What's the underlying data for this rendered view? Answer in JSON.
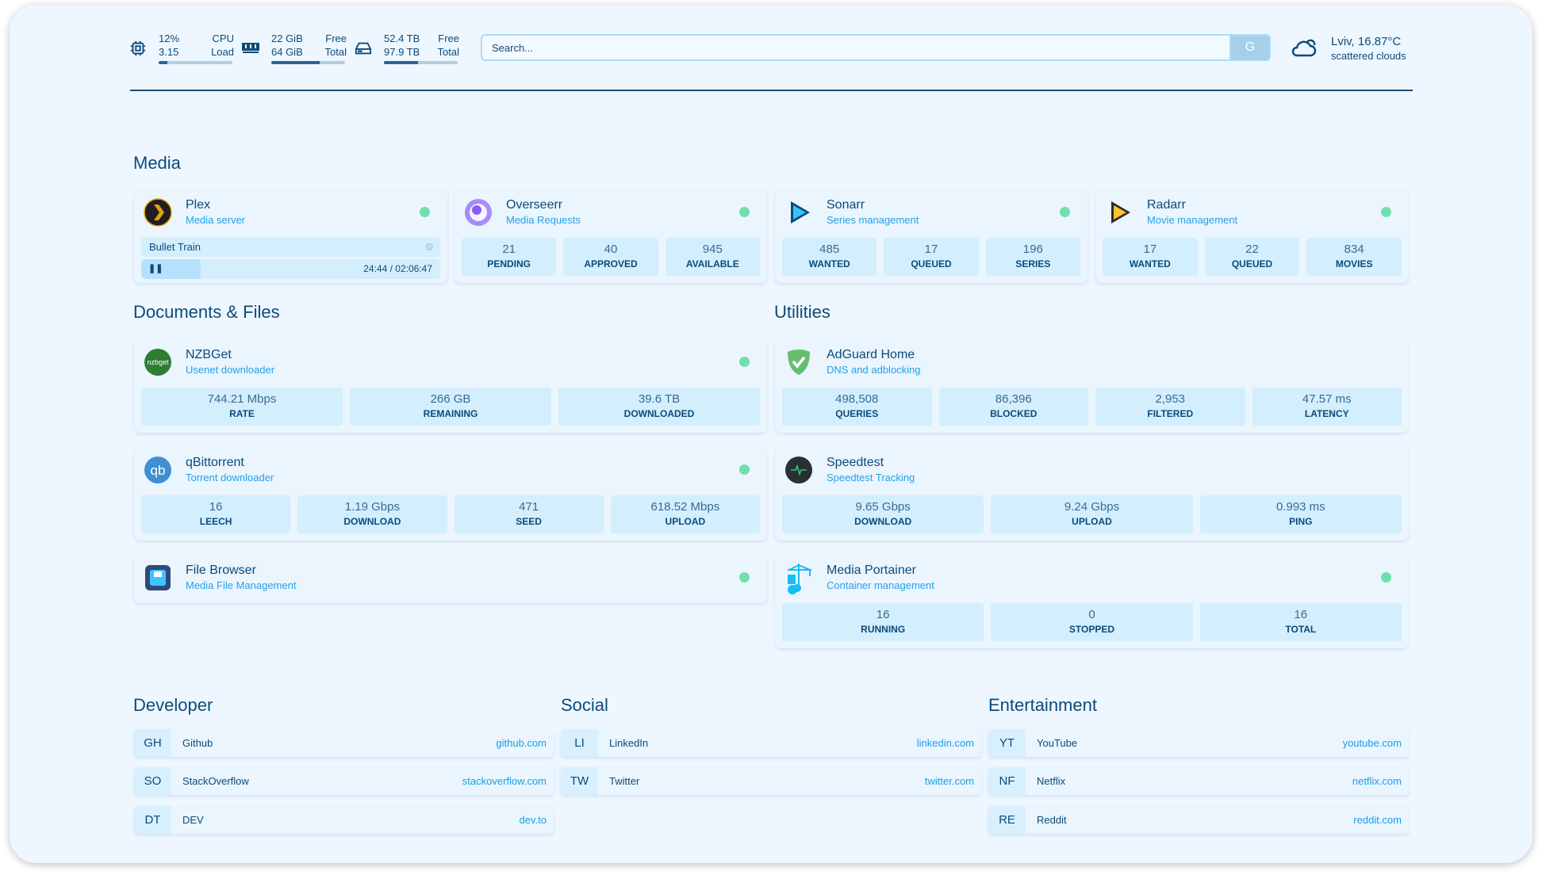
{
  "header": {
    "cpu": {
      "value1": "12%",
      "label1": "CPU",
      "value2": "3.15",
      "label2": "Load",
      "usage": 0.12
    },
    "memory": {
      "value1": "22 GiB",
      "label1": "Free",
      "value2": "64 GiB",
      "label2": "Total",
      "usage": 0.66
    },
    "disk": {
      "value1": "52.4 TB",
      "label1": "Free",
      "value2": "97.9 TB",
      "label2": "Total",
      "usage": 0.46
    },
    "search": {
      "placeholder": "Search...",
      "button": "G"
    },
    "weather": {
      "location_temp": "Lviv, 16.87°C",
      "condition": "scattered clouds"
    }
  },
  "sections": {
    "media": "Media",
    "documents": "Documents & Files",
    "utilities": "Utilities",
    "developer": "Developer",
    "social": "Social",
    "entertainment": "Entertainment"
  },
  "plex": {
    "name": "Plex",
    "desc": "Media server",
    "now_playing": "Bullet Train",
    "time": "24:44 / 02:06:47",
    "progress": 0.2
  },
  "services": [
    {
      "name": "Overseerr",
      "desc": "Media Requests",
      "icon": "overseerr-icon",
      "status": true,
      "stats": [
        {
          "v": "21",
          "l": "Pending"
        },
        {
          "v": "40",
          "l": "Approved"
        },
        {
          "v": "945",
          "l": "Available"
        }
      ]
    },
    {
      "name": "Sonarr",
      "desc": "Series management",
      "icon": "sonarr-icon",
      "status": true,
      "stats": [
        {
          "v": "485",
          "l": "Wanted"
        },
        {
          "v": "17",
          "l": "Queued"
        },
        {
          "v": "196",
          "l": "Series"
        }
      ]
    },
    {
      "name": "Radarr",
      "desc": "Movie management",
      "icon": "radarr-icon",
      "status": true,
      "stats": [
        {
          "v": "17",
          "l": "Wanted"
        },
        {
          "v": "22",
          "l": "Queued"
        },
        {
          "v": "834",
          "l": "Movies"
        }
      ]
    },
    {
      "name": "NZBGet",
      "desc": "Usenet downloader",
      "icon": "nzbget-icon",
      "status": true,
      "stats": [
        {
          "v": "744.21 Mbps",
          "l": "Rate"
        },
        {
          "v": "266 GB",
          "l": "Remaining"
        },
        {
          "v": "39.6 TB",
          "l": "Downloaded"
        }
      ]
    },
    {
      "name": "qBittorrent",
      "desc": "Torrent downloader",
      "icon": "qbittorrent-icon",
      "status": true,
      "stats": [
        {
          "v": "16",
          "l": "Leech"
        },
        {
          "v": "1.19 Gbps",
          "l": "Download"
        },
        {
          "v": "471",
          "l": "Seed"
        },
        {
          "v": "618.52 Mbps",
          "l": "Upload"
        }
      ]
    },
    {
      "name": "File Browser",
      "desc": "Media File Management",
      "icon": "file-browser-icon",
      "status": true,
      "stats": []
    },
    {
      "name": "AdGuard Home",
      "desc": "DNS and adblocking",
      "icon": "adguard-icon",
      "status": false,
      "stats": [
        {
          "v": "498,508",
          "l": "Queries"
        },
        {
          "v": "86,396",
          "l": "Blocked"
        },
        {
          "v": "2,953",
          "l": "Filtered"
        },
        {
          "v": "47.57 ms",
          "l": "Latency"
        }
      ]
    },
    {
      "name": "Speedtest",
      "desc": "Speedtest Tracking",
      "icon": "speedtest-icon",
      "status": false,
      "stats": [
        {
          "v": "9.65 Gbps",
          "l": "Download"
        },
        {
          "v": "9.24 Gbps",
          "l": "Upload"
        },
        {
          "v": "0.993 ms",
          "l": "Ping"
        }
      ]
    },
    {
      "name": "Media Portainer",
      "desc": "Container management",
      "icon": "portainer-icon",
      "status": true,
      "stats": [
        {
          "v": "16",
          "l": "Running"
        },
        {
          "v": "0",
          "l": "Stopped"
        },
        {
          "v": "16",
          "l": "Total"
        }
      ]
    }
  ],
  "bookmarks": [
    [
      {
        "abbr": "GH",
        "name": "Github",
        "url": "github.com"
      },
      {
        "abbr": "SO",
        "name": "StackOverflow",
        "url": "stackoverflow.com"
      },
      {
        "abbr": "DT",
        "name": "DEV",
        "url": "dev.to"
      }
    ],
    [
      {
        "abbr": "LI",
        "name": "LinkedIn",
        "url": "linkedin.com"
      },
      {
        "abbr": "TW",
        "name": "Twitter",
        "url": "twitter.com"
      }
    ],
    [
      {
        "abbr": "YT",
        "name": "YouTube",
        "url": "youtube.com"
      },
      {
        "abbr": "NF",
        "name": "Netflix",
        "url": "netflix.com"
      },
      {
        "abbr": "RE",
        "name": "Reddit",
        "url": "reddit.com"
      }
    ]
  ],
  "colors": {
    "accent": "#26a0e8",
    "text": "#0c4a7a",
    "status_ok": "#6fe0ad",
    "stat_bg": "#d3eefd"
  }
}
